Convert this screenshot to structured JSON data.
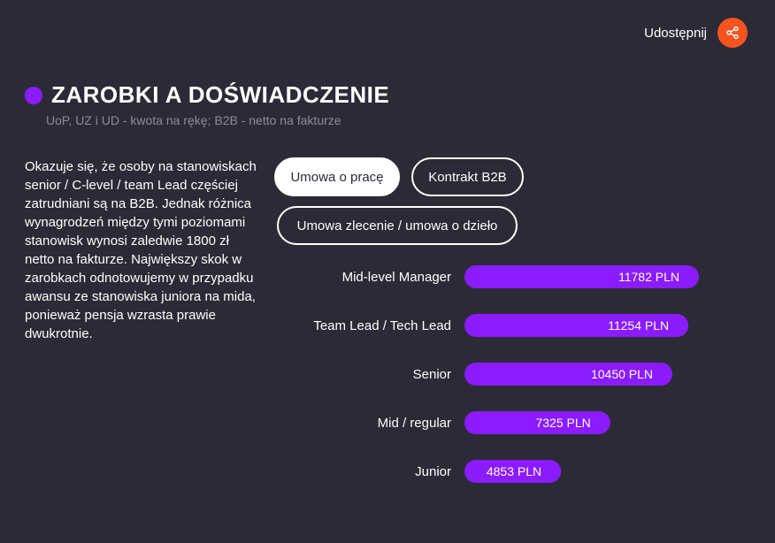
{
  "header": {
    "share_label": "Udostępnij",
    "share_icon": "share-icon",
    "share_color": "#f5541f"
  },
  "section": {
    "title": "ZAROBKI A DOŚWIADCZENIE",
    "subtitle": "UoP, UZ i UD - kwota na rękę; B2B - netto na fakturze",
    "accent_color": "#8a1cff"
  },
  "description": "Okazuje się, że osoby na stanowiskach senior / C-level / team Lead częściej zatrudniani są na B2B. Jednak różnica wynagrodzeń między tymi poziomami stanowisk wynosi zaledwie 1800 zł netto na fakturze. Największy skok w zarobkach odnotowujemy w przypadku awansu ze stanowiska juniora na mida, ponieważ pensja wzrasta prawie dwukrotnie.",
  "filters": {
    "selected": "Umowa o pracę",
    "options": [
      "Umowa o pracę",
      "Kontrakt B2B",
      "Umowa zlecenie / umowa o dzieło"
    ]
  },
  "chart_data": {
    "type": "bar",
    "orientation": "horizontal",
    "categories": [
      "Mid-level Manager",
      "Team Lead / Tech Lead",
      "Senior",
      "Mid / regular",
      "Junior"
    ],
    "values": [
      11782,
      11254,
      10450,
      7325,
      4853
    ],
    "value_labels": [
      "11782 PLN",
      "11254 PLN",
      "10450 PLN",
      "7325 PLN",
      "4853 PLN"
    ],
    "unit": "PLN",
    "bar_color": "#8a1cff",
    "xlim": [
      0,
      11782
    ],
    "grid": false,
    "legend": "none"
  }
}
